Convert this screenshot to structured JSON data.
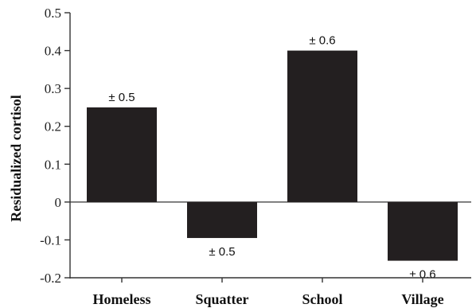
{
  "chart_data": {
    "type": "bar",
    "title": "",
    "xlabel": "",
    "ylabel": "Residualized cortisol",
    "ylim": [
      -0.2,
      0.5
    ],
    "yticks": [
      -0.2,
      -0.1,
      0,
      0.1,
      0.2,
      0.3,
      0.4,
      0.5
    ],
    "ytick_labels": [
      "-0.2",
      "-0.1",
      "0",
      "0.1",
      "0.2",
      "0.3",
      "0.4",
      "0.5"
    ],
    "categories": [
      "Homeless",
      "Squatter",
      "School",
      "Village"
    ],
    "values": [
      0.25,
      -0.095,
      0.4,
      -0.155
    ],
    "data_labels": [
      "± 0.5",
      "± 0.5",
      "± 0.6",
      "± 0.6"
    ],
    "grid": false,
    "legend": "none",
    "bar_color": "#231f20",
    "axis_color": "#333333"
  }
}
